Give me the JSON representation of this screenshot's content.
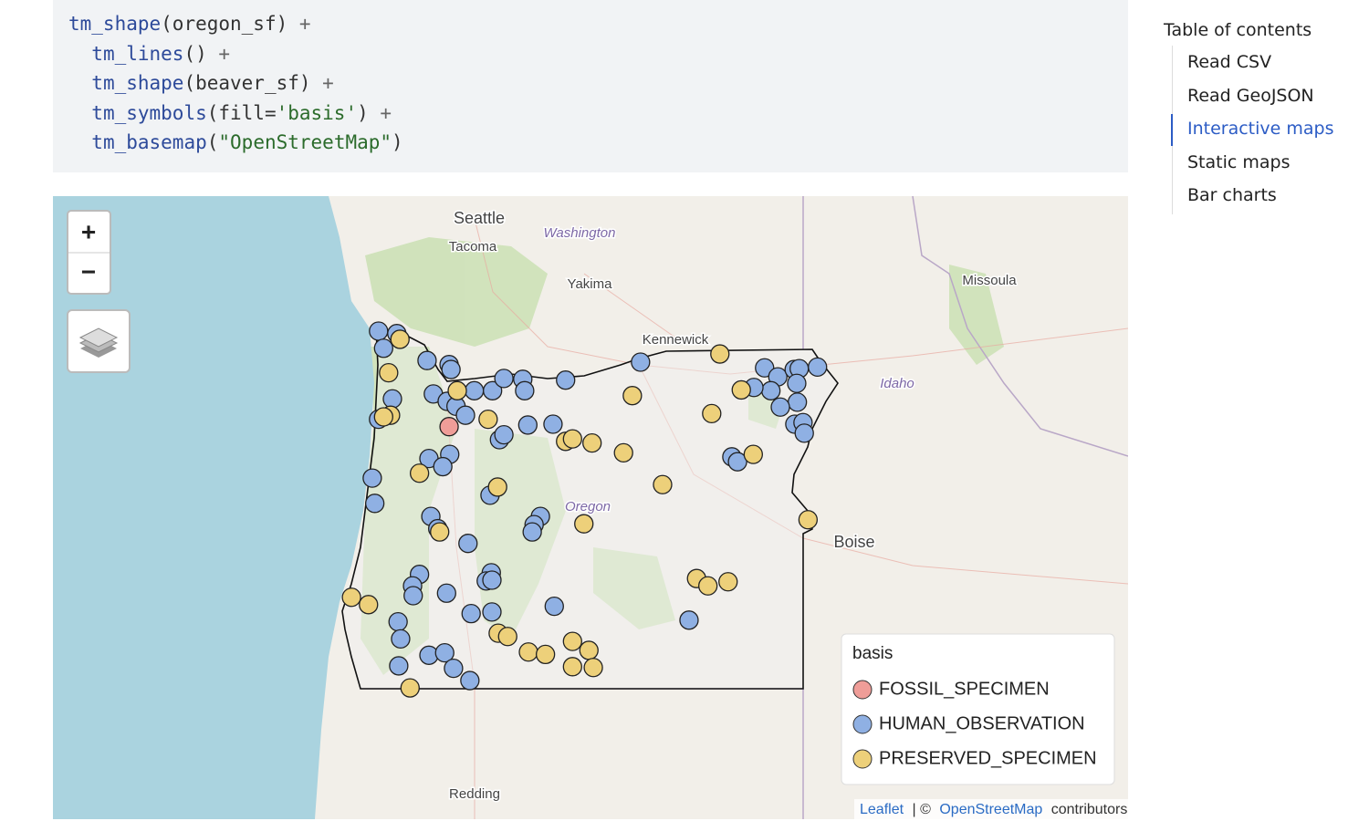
{
  "code": {
    "lines": [
      "tm_shape(oregon_sf) +",
      "  tm_lines() +",
      "  tm_shape(beaver_sf) +",
      "  tm_symbols(fill='basis') +",
      "  tm_basemap(\"OpenStreetMap\")"
    ]
  },
  "map": {
    "zoom": {
      "in": "+",
      "out": "−"
    },
    "places": [
      "Seattle",
      "Tacoma",
      "Washington",
      "Yakima",
      "Kennewick",
      "Missoula",
      "Idaho",
      "Oregon",
      "Boise",
      "Redding"
    ],
    "legend": {
      "title": "basis"
    },
    "layers": [
      {
        "name": "FOSSIL_SPECIMEN",
        "color": "#ef9d98",
        "lon": [
          -122.65
        ],
        "lat": [
          45.21
        ]
      },
      {
        "name": "HUMAN_OBSERVATION",
        "color": "#8fb0e3",
        "lon": [
          -123.77,
          -123.69,
          -123.48,
          -123.0,
          -122.65,
          -122.62,
          -122.9,
          -122.68,
          -122.54,
          -122.39,
          -122.25,
          -121.96,
          -121.78,
          -121.48,
          -121.45,
          -120.8,
          -119.61,
          -123.55,
          -123.77,
          -121.4,
          -121.0,
          -121.85,
          -121.78,
          -122.64,
          -122.97,
          -122.75,
          -123.87,
          -123.83,
          -122.0,
          -122.94,
          -122.83,
          -121.2,
          -121.3,
          -121.33,
          -122.35,
          -121.98,
          -122.06,
          -121.97,
          -123.12,
          -123.23,
          -123.22,
          -122.69,
          -122.3,
          -121.97,
          -120.98,
          -118.84,
          -123.46,
          -123.42,
          -123.45,
          -122.97,
          -122.72,
          -122.58,
          -122.32,
          -117.64,
          -117.43,
          -117.17,
          -117.09,
          -116.8,
          -117.13,
          -117.54,
          -117.12,
          -117.39,
          -117.16,
          -117.03,
          -117.01,
          -118.16,
          -118.07,
          -117.81
        ],
        "lat": [
          46.38,
          46.17,
          46.35,
          46.02,
          45.97,
          45.91,
          45.61,
          45.52,
          45.46,
          45.35,
          45.65,
          45.65,
          45.8,
          45.79,
          45.65,
          45.78,
          46.0,
          45.55,
          45.3,
          45.23,
          45.24,
          45.05,
          45.11,
          44.87,
          44.82,
          44.72,
          44.58,
          44.27,
          44.37,
          44.11,
          43.96,
          44.11,
          44.01,
          43.92,
          43.78,
          43.42,
          43.32,
          43.33,
          43.4,
          43.26,
          43.14,
          43.17,
          42.92,
          42.94,
          43.01,
          42.84,
          42.82,
          42.61,
          42.28,
          42.41,
          42.44,
          42.25,
          42.1,
          45.93,
          45.82,
          45.91,
          45.92,
          45.94,
          45.74,
          45.65,
          45.51,
          45.45,
          45.24,
          45.26,
          45.13,
          44.84,
          44.78,
          45.69
        ]
      },
      {
        "name": "PRESERVED_SPECIMEN",
        "color": "#edd07a",
        "lon": [
          -123.43,
          -123.61,
          -122.52,
          -123.58,
          -123.69,
          -122.03,
          -120.8,
          -120.69,
          -120.38,
          -119.88,
          -119.74,
          -118.35,
          -118.01,
          -118.48,
          -117.82,
          -119.26,
          -121.88,
          -123.12,
          -122.8,
          -120.51,
          -116.95,
          -118.72,
          -118.54,
          -118.22,
          -124.2,
          -123.93,
          -121.87,
          -121.72,
          -120.69,
          -120.43,
          -121.39,
          -121.12,
          -120.69,
          -120.36,
          -123.27
        ],
        "lat": [
          46.28,
          45.87,
          45.65,
          45.35,
          45.33,
          45.3,
          45.03,
          45.06,
          45.01,
          44.89,
          45.59,
          46.1,
          45.66,
          45.37,
          44.87,
          44.5,
          44.47,
          44.64,
          43.92,
          44.02,
          44.07,
          43.35,
          43.26,
          43.31,
          43.12,
          43.03,
          42.68,
          42.64,
          42.58,
          42.47,
          42.45,
          42.42,
          42.27,
          42.26,
          42.01
        ]
      }
    ],
    "attribution": {
      "leaflet": "Leaflet",
      "sep": "| ©",
      "osm": "OpenStreetMap",
      "tail": "contributors"
    }
  },
  "toc": {
    "title": "Table of contents",
    "items": [
      "Read CSV",
      "Read GeoJSON",
      "Interactive maps",
      "Static maps",
      "Bar charts"
    ],
    "active": 2
  }
}
